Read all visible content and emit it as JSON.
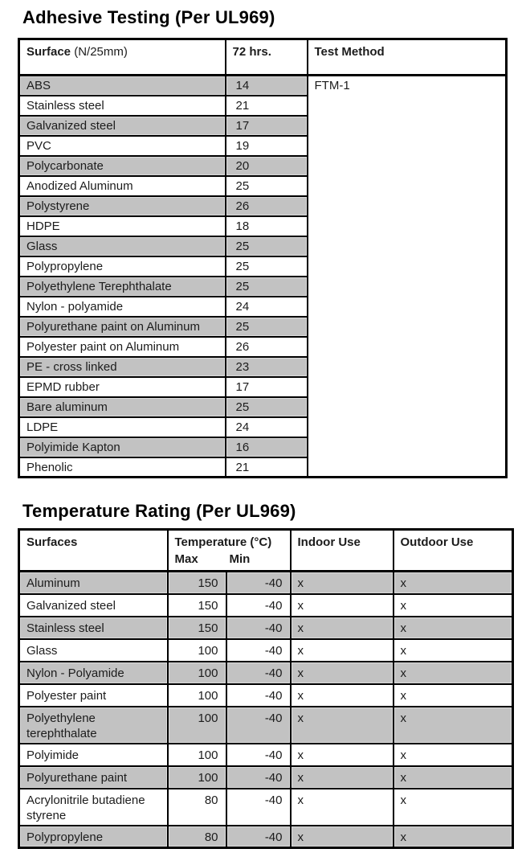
{
  "colors": {
    "row_gray": "#c2c2c2",
    "row_gray_edge": "#dadada",
    "border_black": "#000000",
    "text": "#1c1c1c",
    "background": "#ffffff"
  },
  "adhesive": {
    "title": "Adhesive Testing (Per UL969)",
    "headers": {
      "surface": "Surface",
      "surface_unit": "(N/25mm)",
      "hours": "72 hrs.",
      "method": "Test Method"
    },
    "test_method_value": "FTM-1",
    "rows": [
      {
        "surface": "ABS",
        "value": "14"
      },
      {
        "surface": "Stainless steel",
        "value": "21"
      },
      {
        "surface": "Galvanized steel",
        "value": "17"
      },
      {
        "surface": "PVC",
        "value": "19"
      },
      {
        "surface": "Polycarbonate",
        "value": "20"
      },
      {
        "surface": "Anodized Aluminum",
        "value": "25"
      },
      {
        "surface": "Polystyrene",
        "value": "26"
      },
      {
        "surface": "HDPE",
        "value": "18"
      },
      {
        "surface": "Glass",
        "value": "25"
      },
      {
        "surface": "Polypropylene",
        "value": "25"
      },
      {
        "surface": "Polyethylene Terephthalate",
        "value": "25"
      },
      {
        "surface": "Nylon - polyamide",
        "value": "24"
      },
      {
        "surface": "Polyurethane paint on Aluminum",
        "value": "25"
      },
      {
        "surface": "Polyester paint on Aluminum",
        "value": "26"
      },
      {
        "surface": "PE - cross linked",
        "value": "23"
      },
      {
        "surface": "EPMD rubber",
        "value": "17"
      },
      {
        "surface": "Bare aluminum",
        "value": "25"
      },
      {
        "surface": "LDPE",
        "value": "24"
      },
      {
        "surface": "Polyimide Kapton",
        "value": "16"
      },
      {
        "surface": "Phenolic",
        "value": "21"
      }
    ]
  },
  "temperature": {
    "title": "Temperature Rating (Per UL969)",
    "headers": {
      "surfaces": "Surfaces",
      "temp": "Temperature (°C)",
      "max": "Max",
      "min": "Min",
      "indoor": "Indoor Use",
      "outdoor": "Outdoor Use"
    },
    "rows": [
      {
        "surface": "Aluminum",
        "max": "150",
        "min": "-40",
        "indoor": "x",
        "outdoor": "x"
      },
      {
        "surface": "Galvanized steel",
        "max": "150",
        "min": "-40",
        "indoor": "x",
        "outdoor": "x"
      },
      {
        "surface": "Stainless steel",
        "max": "150",
        "min": "-40",
        "indoor": "x",
        "outdoor": "x"
      },
      {
        "surface": "Glass",
        "max": "100",
        "min": "-40",
        "indoor": "x",
        "outdoor": "x"
      },
      {
        "surface": "Nylon - Polyamide",
        "max": "100",
        "min": "-40",
        "indoor": "x",
        "outdoor": "x"
      },
      {
        "surface": "Polyester paint",
        "max": "100",
        "min": "-40",
        "indoor": "x",
        "outdoor": "x"
      },
      {
        "surface": "Polyethylene terephthalate",
        "max": "100",
        "min": "-40",
        "indoor": "x",
        "outdoor": "x"
      },
      {
        "surface": "Polyimide",
        "max": "100",
        "min": "-40",
        "indoor": "x",
        "outdoor": "x"
      },
      {
        "surface": "Polyurethane paint",
        "max": "100",
        "min": "-40",
        "indoor": "x",
        "outdoor": "x"
      },
      {
        "surface": "Acrylonitrile butadiene styrene",
        "max": "80",
        "min": "-40",
        "indoor": "x",
        "outdoor": "x"
      },
      {
        "surface": "Polypropylene",
        "max": "80",
        "min": "-40",
        "indoor": "x",
        "outdoor": "x"
      }
    ]
  }
}
